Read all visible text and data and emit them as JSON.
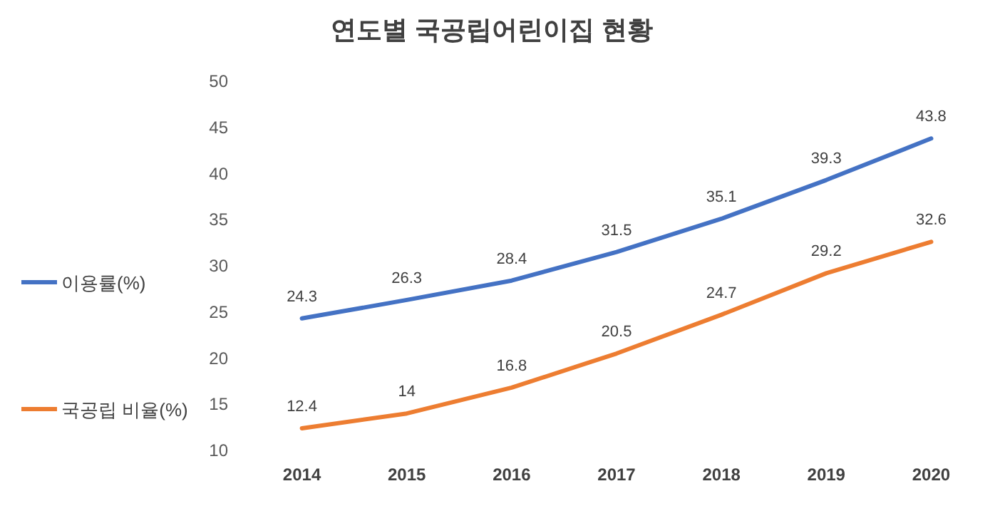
{
  "chart_data": {
    "type": "line",
    "title": "연도별 국공립어린이집 현황",
    "categories": [
      "2014",
      "2015",
      "2016",
      "2017",
      "2018",
      "2019",
      "2020"
    ],
    "series": [
      {
        "name": "이용률(%)",
        "color": "#4472c4",
        "values": [
          24.3,
          26.3,
          28.4,
          31.5,
          35.1,
          39.3,
          43.8
        ]
      },
      {
        "name": "국공립 비율(%)",
        "color": "#ed7d31",
        "values": [
          12.4,
          14,
          16.8,
          20.5,
          24.7,
          29.2,
          32.6
        ]
      }
    ],
    "ylim": [
      10,
      50
    ],
    "yticks": [
      10,
      15,
      20,
      25,
      30,
      35,
      40,
      45,
      50
    ],
    "data_labels": true,
    "legend": "left"
  }
}
